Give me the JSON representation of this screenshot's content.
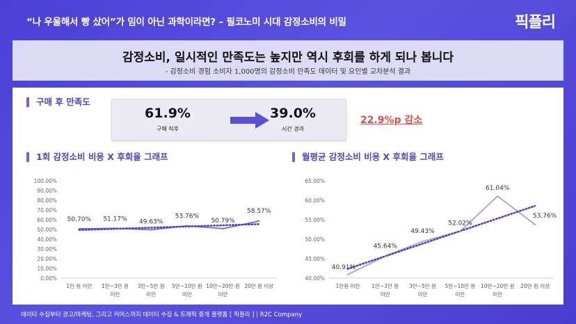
{
  "header": {
    "title": "“나 우울해서 빵 샀어”가 밈이 아닌 과학이라면? – 필코노미 시대 감정소비의 비밀",
    "logo": "픽플리"
  },
  "headline": {
    "title": "감정소비, 일시적인 만족도는 높지만 역시 후회를 하게 되나 봅니다",
    "subtitle": "- 감정소비 경험 소비자 1,000명의 감정소비 만족도 데이터 및 요인별 교차분석 결과"
  },
  "satisfaction": {
    "label": "구매 후 만족도",
    "before_value": "61.9%",
    "before_caption": "구매 직후",
    "after_value": "39.0%",
    "after_caption": "시간 경과",
    "drop": "22.9%p 감소"
  },
  "footer": {
    "text": "데이터 수집부터 광고/마케팅, 그리고 커머스까지 데이터 수집 & 트래픽 중개 플랫폼 [ 픽플리 ]  |  R2C Company"
  },
  "chart_data": [
    {
      "type": "line",
      "title": "1회 감정소비 비용 X 후회율 그래프",
      "categories": [
        "1만 원 미만",
        "1만~3만 원 미만",
        "3만~5만 원 미만",
        "5만~10만 원 미만",
        "10만~20만 원 미만",
        "20만 원 이상"
      ],
      "series": [
        {
          "values": [
            50.7,
            51.17,
            49.63,
            53.76,
            50.79,
            58.57
          ]
        }
      ],
      "data_labels": [
        "50.70%",
        "51.17%",
        "49.63%",
        "53.76%",
        "50.79%",
        "58.57%"
      ],
      "yticks": [
        "100.00%",
        "90.00%",
        "80.00%",
        "70.00%",
        "60.00%",
        "50.00%",
        "40.00%",
        "30.00%",
        "20.00%",
        "10.00%",
        "0.00%"
      ],
      "ylim": [
        0,
        100
      ],
      "trendline": true,
      "colors": {
        "line": "#6f66d8",
        "trend": "#4a3fc8"
      }
    },
    {
      "type": "line",
      "title": "월평균 감정소비 비용 X 후회율 그래프",
      "categories": [
        "1만원 미만",
        "1만~3만 원 미만",
        "3만~5만 원 미만",
        "5만~10만 원 미만",
        "10만~20만 원 미만",
        "20만 원 이상"
      ],
      "series": [
        {
          "values": [
            40.91,
            45.64,
            49.43,
            52.02,
            61.04,
            53.76
          ]
        }
      ],
      "data_labels": [
        "40.91%",
        "45.64%",
        "49.43%",
        "52.02%",
        "61.04%",
        "53.76%"
      ],
      "yticks": [
        "65.00%",
        "60.00%",
        "55.00%",
        "50.00%",
        "45.00%",
        "40.00%"
      ],
      "ylim": [
        40,
        65
      ],
      "trendline": true,
      "colors": {
        "line": "#a69ee8",
        "trend": "#4a3fc8"
      }
    }
  ]
}
